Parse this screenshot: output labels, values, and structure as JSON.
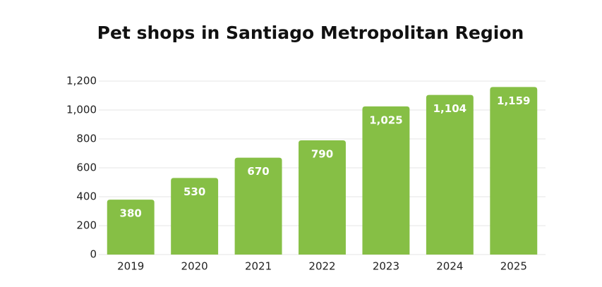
{
  "chart_data": {
    "type": "bar",
    "title": "Pet shops in Santiago Metropolitan Region",
    "categories": [
      "2019",
      "2020",
      "2021",
      "2022",
      "2023",
      "2024",
      "2025"
    ],
    "values": [
      380,
      530,
      670,
      790,
      1025,
      1104,
      1159
    ],
    "value_labels": [
      "380",
      "530",
      "670",
      "790",
      "1,025",
      "1,104",
      "1,159"
    ],
    "color": "#86bf45",
    "ylim": [
      0,
      1200
    ],
    "yticks": [
      0,
      200,
      400,
      600,
      800,
      {
        "value": 1000,
        "label": "1,000"
      },
      {
        "value": 1200,
        "label": "1,200"
      }
    ],
    "grid": true
  }
}
